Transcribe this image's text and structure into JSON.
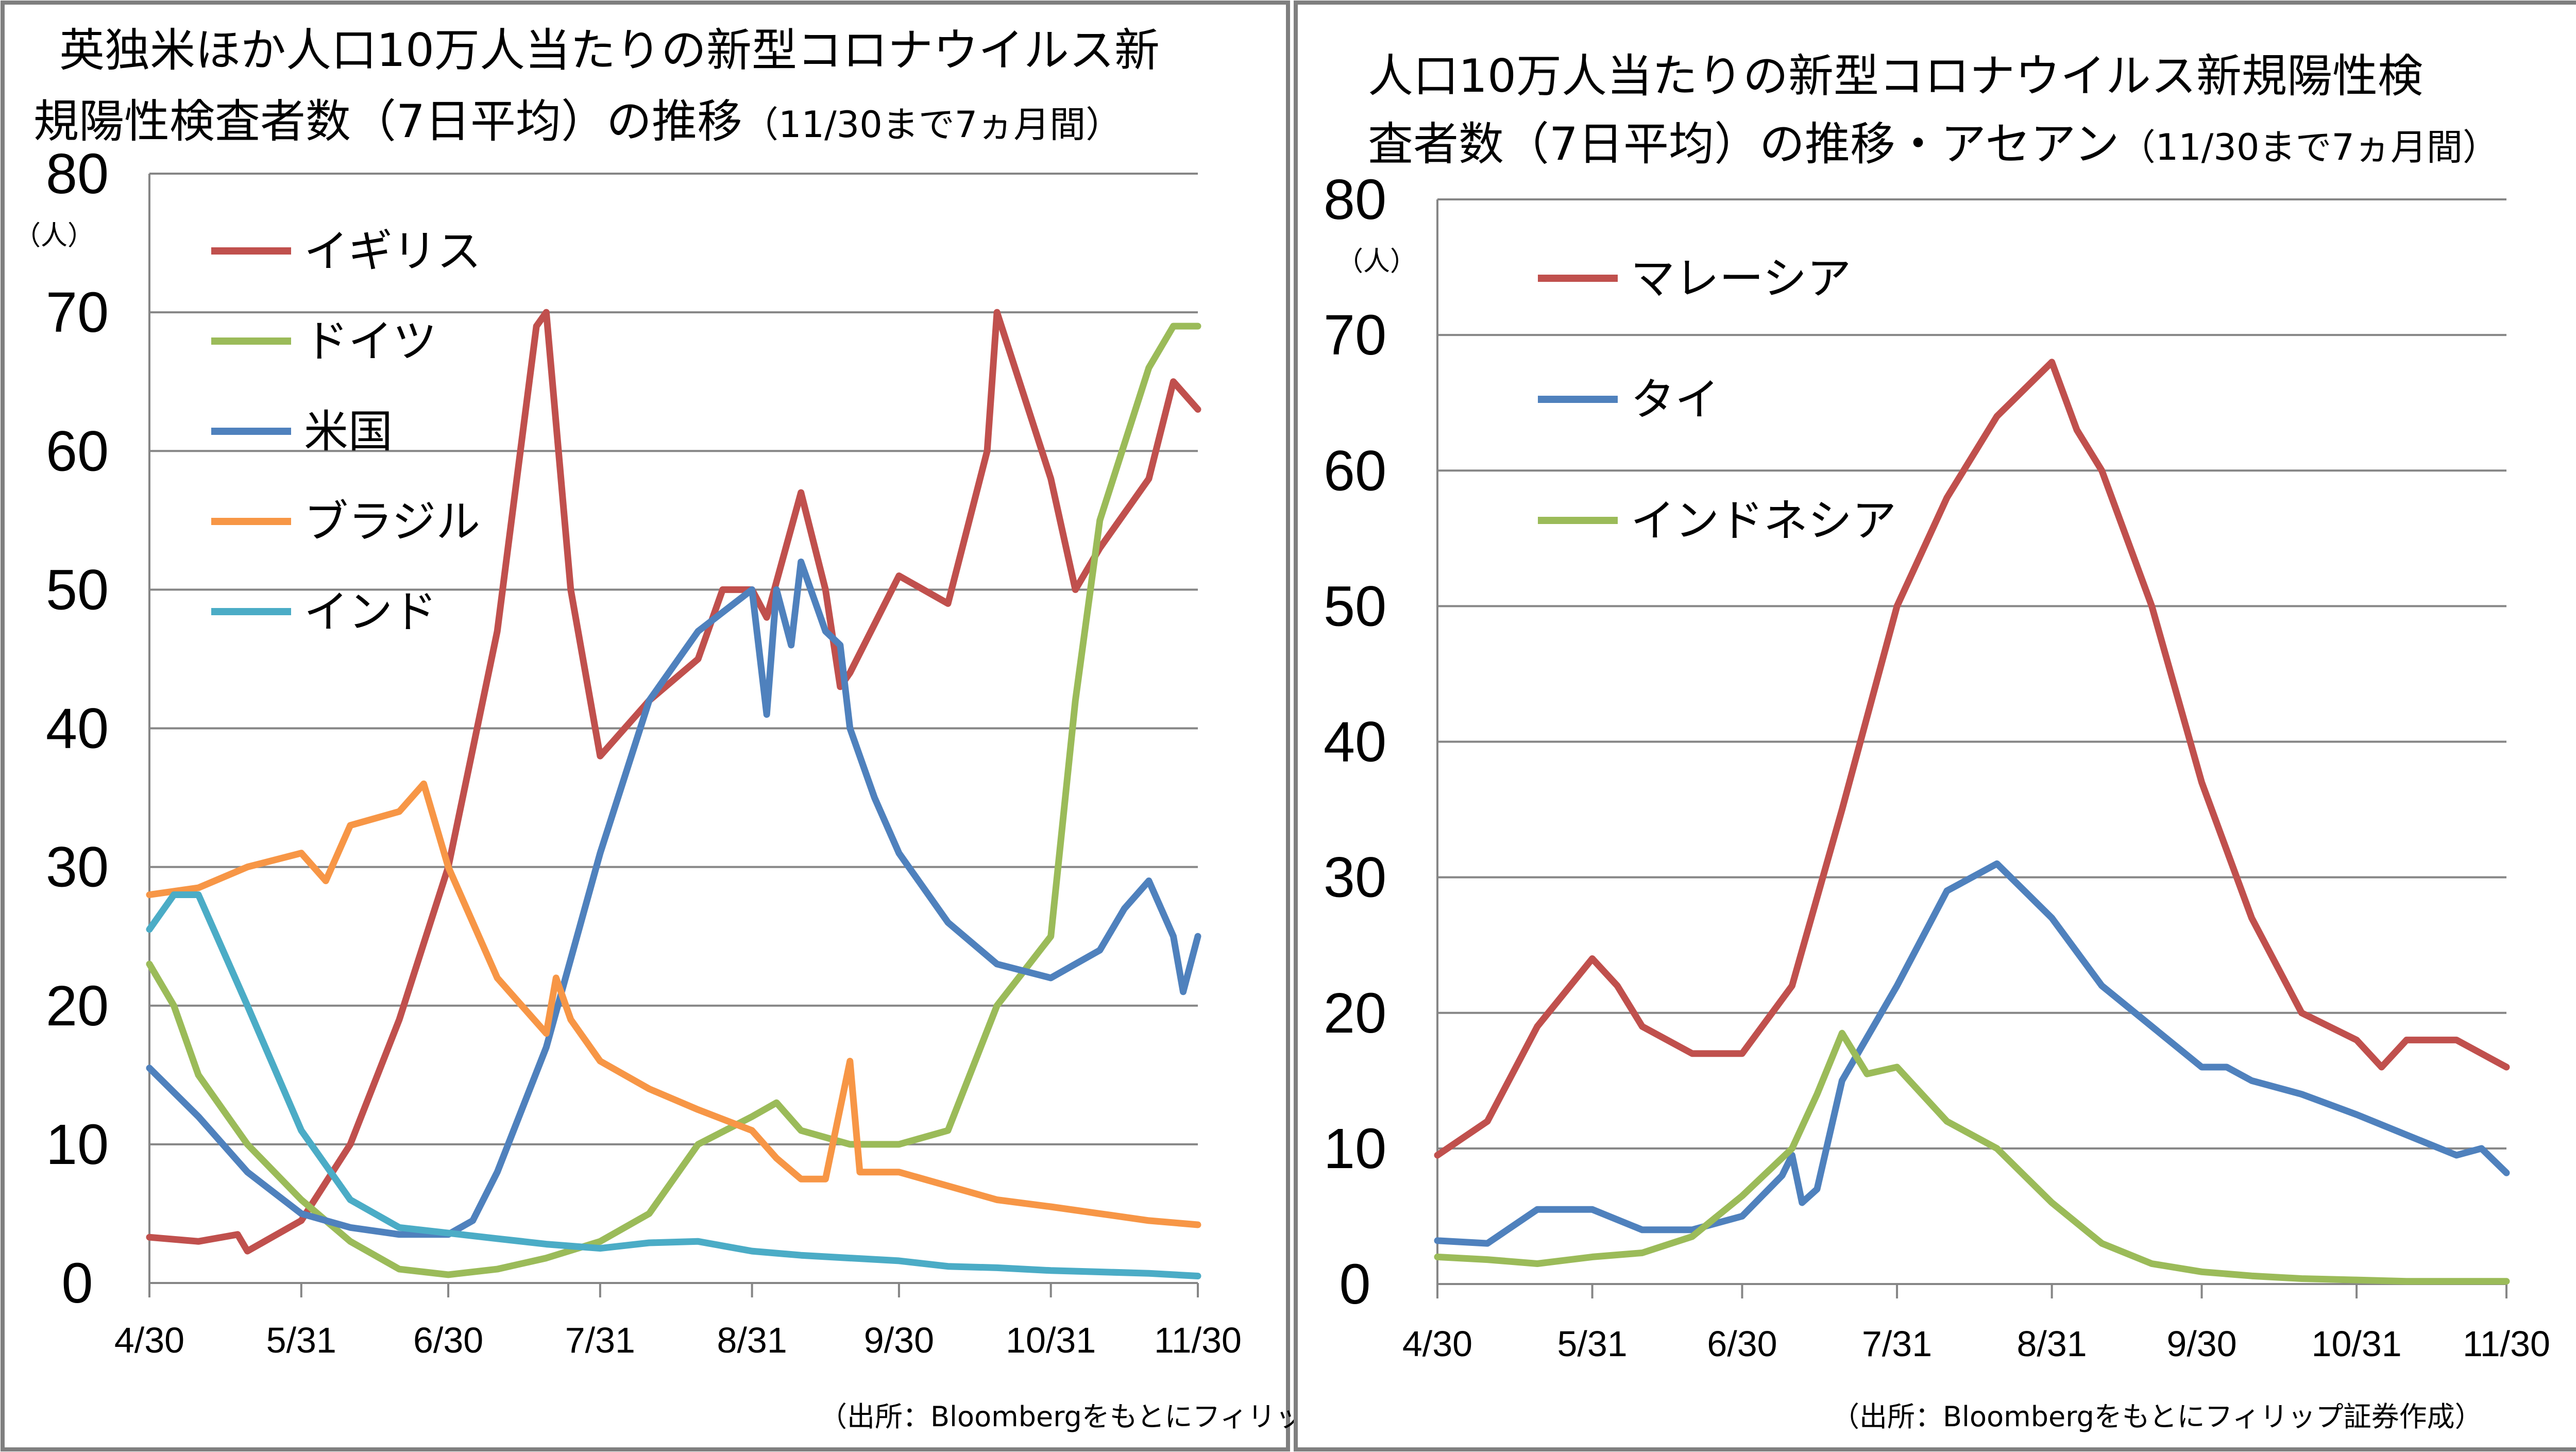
{
  "chart_data": [
    {
      "type": "line",
      "title_line1": "英独米ほか人口10万人当たりの新型コロナウイルス新",
      "title_line2": "規陽性検査者数（7日平均）の推移",
      "title_suffix": "（11/30まで7ヵ月間）",
      "unit": "（人）",
      "source": "（出所：Bloombergをもとにフィリップ証券作成）",
      "ylim": [
        0,
        80
      ],
      "yticks": [
        0,
        10,
        20,
        30,
        40,
        50,
        60,
        70,
        80
      ],
      "x_domain": [
        "2021-04-30",
        "2021-11-30"
      ],
      "xticks": [
        "4/30",
        "5/31",
        "6/30",
        "7/31",
        "8/31",
        "9/30",
        "10/31",
        "11/30"
      ],
      "xtick_dates": [
        "2021-04-30",
        "2021-05-31",
        "2021-06-30",
        "2021-07-31",
        "2021-08-31",
        "2021-09-30",
        "2021-10-31",
        "2021-11-30"
      ],
      "grid": "horizontal",
      "legend_position": "top-left",
      "series": [
        {
          "name": "イギリス",
          "color": "#c0504d",
          "x": [
            "2021-04-30",
            "2021-05-10",
            "2021-05-18",
            "2021-05-20",
            "2021-05-31",
            "2021-06-10",
            "2021-06-20",
            "2021-06-30",
            "2021-07-10",
            "2021-07-18",
            "2021-07-20",
            "2021-07-25",
            "2021-07-31",
            "2021-08-10",
            "2021-08-20",
            "2021-08-25",
            "2021-08-31",
            "2021-09-03",
            "2021-09-10",
            "2021-09-15",
            "2021-09-18",
            "2021-09-20",
            "2021-09-30",
            "2021-10-10",
            "2021-10-18",
            "2021-10-20",
            "2021-10-31",
            "2021-11-05",
            "2021-11-10",
            "2021-11-20",
            "2021-11-25",
            "2021-11-30"
          ],
          "values": [
            3.3,
            3.0,
            3.5,
            2.3,
            4.5,
            10,
            19,
            30,
            47,
            69,
            70,
            50,
            38,
            42,
            45,
            50,
            50,
            48,
            57,
            50,
            43,
            44,
            51,
            49,
            60,
            70,
            58,
            50,
            53,
            58,
            65,
            63
          ]
        },
        {
          "name": "ドイツ",
          "color": "#9bbb59",
          "x": [
            "2021-04-30",
            "2021-05-05",
            "2021-05-10",
            "2021-05-20",
            "2021-05-31",
            "2021-06-10",
            "2021-06-20",
            "2021-06-30",
            "2021-07-10",
            "2021-07-20",
            "2021-07-31",
            "2021-08-10",
            "2021-08-20",
            "2021-08-31",
            "2021-09-05",
            "2021-09-10",
            "2021-09-20",
            "2021-09-30",
            "2021-10-10",
            "2021-10-20",
            "2021-10-31",
            "2021-11-05",
            "2021-11-10",
            "2021-11-20",
            "2021-11-25",
            "2021-11-30"
          ],
          "values": [
            23,
            20,
            15,
            10,
            6,
            3,
            1.0,
            0.6,
            1.0,
            1.8,
            3,
            5,
            10,
            12,
            13,
            11,
            10,
            10,
            11,
            20,
            25,
            42,
            55,
            66,
            69,
            69
          ]
        },
        {
          "name": "米国",
          "color": "#4f81bd",
          "x": [
            "2021-04-30",
            "2021-05-10",
            "2021-05-20",
            "2021-05-31",
            "2021-06-10",
            "2021-06-20",
            "2021-06-30",
            "2021-07-05",
            "2021-07-10",
            "2021-07-20",
            "2021-07-31",
            "2021-08-10",
            "2021-08-20",
            "2021-08-31",
            "2021-09-03",
            "2021-09-05",
            "2021-09-08",
            "2021-09-10",
            "2021-09-15",
            "2021-09-18",
            "2021-09-20",
            "2021-09-25",
            "2021-09-30",
            "2021-10-10",
            "2021-10-20",
            "2021-10-31",
            "2021-11-10",
            "2021-11-15",
            "2021-11-20",
            "2021-11-25",
            "2021-11-27",
            "2021-11-30"
          ],
          "values": [
            15.5,
            12,
            8,
            5,
            4,
            3.5,
            3.5,
            4.5,
            8,
            17,
            31,
            42,
            47,
            50,
            41,
            50,
            46,
            52,
            47,
            46,
            40,
            35,
            31,
            26,
            23,
            22,
            24,
            27,
            29,
            25,
            21,
            25
          ]
        },
        {
          "name": "ブラジル",
          "color": "#f79646",
          "x": [
            "2021-04-30",
            "2021-05-10",
            "2021-05-20",
            "2021-05-31",
            "2021-06-05",
            "2021-06-10",
            "2021-06-20",
            "2021-06-25",
            "2021-06-30",
            "2021-07-10",
            "2021-07-20",
            "2021-07-22",
            "2021-07-25",
            "2021-07-31",
            "2021-08-10",
            "2021-08-20",
            "2021-08-31",
            "2021-09-05",
            "2021-09-10",
            "2021-09-15",
            "2021-09-20",
            "2021-09-22",
            "2021-09-30",
            "2021-10-10",
            "2021-10-20",
            "2021-10-31",
            "2021-11-10",
            "2021-11-20",
            "2021-11-30"
          ],
          "values": [
            28,
            28.5,
            30,
            31,
            29,
            33,
            34,
            36,
            30,
            22,
            18,
            22,
            19,
            16,
            14,
            12.5,
            11,
            9,
            7.5,
            7.5,
            16,
            8,
            8,
            7,
            6,
            5.5,
            5,
            4.5,
            4.2
          ]
        },
        {
          "name": "インド",
          "color": "#4bacc6",
          "x": [
            "2021-04-30",
            "2021-05-05",
            "2021-05-10",
            "2021-05-20",
            "2021-05-31",
            "2021-06-10",
            "2021-06-20",
            "2021-06-30",
            "2021-07-10",
            "2021-07-20",
            "2021-07-31",
            "2021-08-10",
            "2021-08-20",
            "2021-08-31",
            "2021-09-10",
            "2021-09-20",
            "2021-09-30",
            "2021-10-10",
            "2021-10-20",
            "2021-10-31",
            "2021-11-10",
            "2021-11-20",
            "2021-11-30"
          ],
          "values": [
            25.5,
            28,
            28,
            20,
            11,
            6,
            4,
            3.6,
            3.2,
            2.8,
            2.5,
            2.9,
            3.0,
            2.3,
            2.0,
            1.8,
            1.6,
            1.2,
            1.1,
            0.9,
            0.8,
            0.7,
            0.5
          ]
        }
      ]
    },
    {
      "type": "line",
      "title_line1": "人口10万人当たりの新型コロナウイルス新規陽性検",
      "title_line2": "査者数（7日平均）の推移・アセアン",
      "title_suffix": "（11/30まで7ヵ月間）",
      "unit": "（人）",
      "source": "（出所：Bloombergをもとにフィリップ証券作成）",
      "ylim": [
        0,
        80
      ],
      "yticks": [
        0,
        10,
        20,
        30,
        40,
        50,
        60,
        70,
        80
      ],
      "x_domain": [
        "2021-04-30",
        "2021-11-30"
      ],
      "xticks": [
        "4/30",
        "5/31",
        "6/30",
        "7/31",
        "8/31",
        "9/30",
        "10/31",
        "11/30"
      ],
      "xtick_dates": [
        "2021-04-30",
        "2021-05-31",
        "2021-06-30",
        "2021-07-31",
        "2021-08-31",
        "2021-09-30",
        "2021-10-31",
        "2021-11-30"
      ],
      "grid": "horizontal",
      "legend_position": "top-left",
      "series": [
        {
          "name": "マレーシア",
          "color": "#c0504d",
          "x": [
            "2021-04-30",
            "2021-05-10",
            "2021-05-20",
            "2021-05-31",
            "2021-06-05",
            "2021-06-10",
            "2021-06-20",
            "2021-06-30",
            "2021-07-10",
            "2021-07-20",
            "2021-07-31",
            "2021-08-10",
            "2021-08-20",
            "2021-08-31",
            "2021-09-05",
            "2021-09-10",
            "2021-09-20",
            "2021-09-30",
            "2021-10-10",
            "2021-10-20",
            "2021-10-31",
            "2021-11-05",
            "2021-11-10",
            "2021-11-20",
            "2021-11-30"
          ],
          "values": [
            9.5,
            12,
            19,
            24,
            22,
            19,
            17,
            17,
            22,
            35,
            50,
            58,
            64,
            68,
            63,
            60,
            50,
            37,
            27,
            20,
            18,
            16,
            18,
            18,
            16
          ]
        },
        {
          "name": "タイ",
          "color": "#4f81bd",
          "x": [
            "2021-04-30",
            "2021-05-10",
            "2021-05-20",
            "2021-05-31",
            "2021-06-10",
            "2021-06-20",
            "2021-06-30",
            "2021-07-08",
            "2021-07-10",
            "2021-07-12",
            "2021-07-15",
            "2021-07-20",
            "2021-07-31",
            "2021-08-10",
            "2021-08-20",
            "2021-08-31",
            "2021-09-10",
            "2021-09-20",
            "2021-09-30",
            "2021-10-05",
            "2021-10-10",
            "2021-10-20",
            "2021-10-31",
            "2021-11-10",
            "2021-11-20",
            "2021-11-25",
            "2021-11-30"
          ],
          "values": [
            3.2,
            3.0,
            5.5,
            5.5,
            4,
            4,
            5,
            8,
            9.5,
            6,
            7,
            15,
            22,
            29,
            31,
            27,
            22,
            19,
            16,
            16,
            15,
            14,
            12.5,
            11,
            9.5,
            10,
            8.2
          ]
        },
        {
          "name": "インドネシア",
          "color": "#9bbb59",
          "x": [
            "2021-04-30",
            "2021-05-10",
            "2021-05-20",
            "2021-05-31",
            "2021-06-10",
            "2021-06-20",
            "2021-06-30",
            "2021-07-10",
            "2021-07-15",
            "2021-07-20",
            "2021-07-25",
            "2021-07-31",
            "2021-08-10",
            "2021-08-20",
            "2021-08-31",
            "2021-09-10",
            "2021-09-20",
            "2021-09-30",
            "2021-10-10",
            "2021-10-20",
            "2021-10-31",
            "2021-11-10",
            "2021-11-20",
            "2021-11-30"
          ],
          "values": [
            2.0,
            1.8,
            1.5,
            2.0,
            2.3,
            3.5,
            6.5,
            10,
            14,
            18.5,
            15.5,
            16,
            12,
            10,
            6,
            3,
            1.5,
            0.9,
            0.6,
            0.4,
            0.3,
            0.2,
            0.2,
            0.2
          ]
        }
      ]
    }
  ]
}
